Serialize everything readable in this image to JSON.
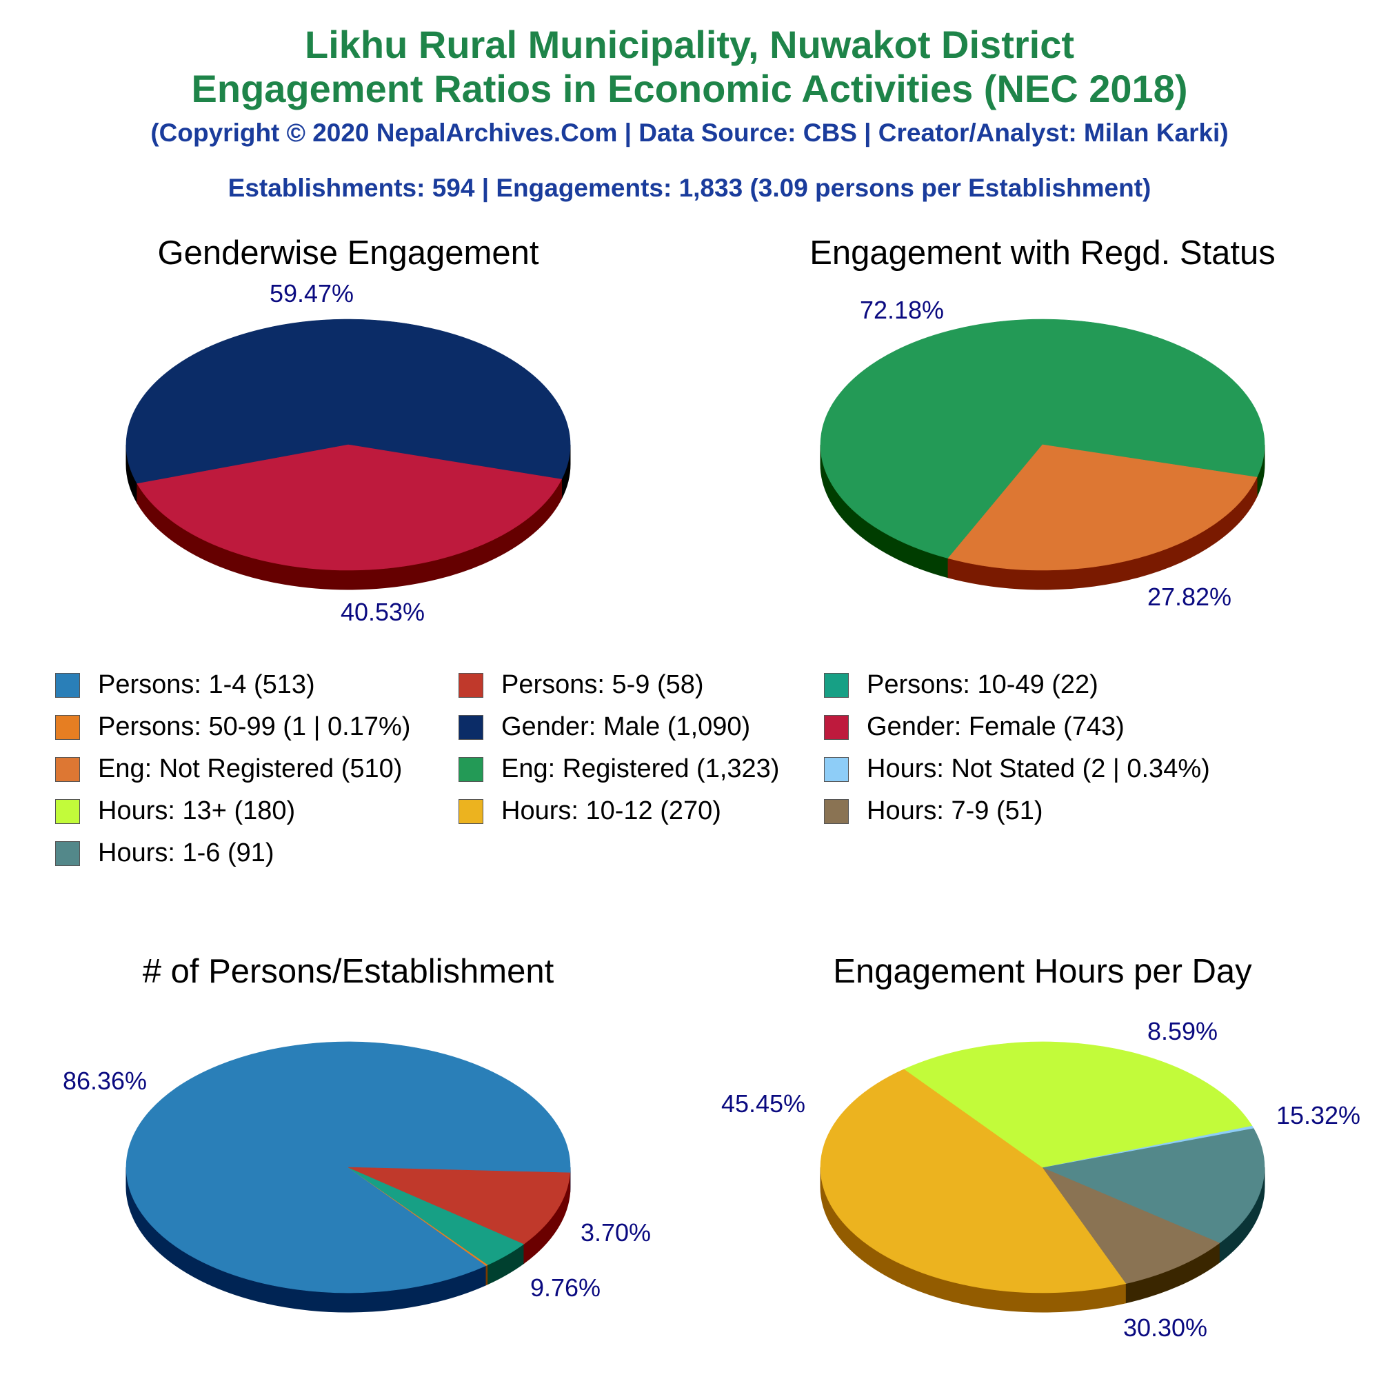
{
  "header": {
    "title_line1": "Likhu Rural Municipality, Nuwakot District",
    "title_line2": "Engagement Ratios in Economic Activities (NEC 2018)",
    "copyright": "(Copyright © 2020 NepalArchives.Com | Data Source: CBS | Creator/Analyst: Milan Karki)",
    "stats": "Establishments: 594 | Engagements: 1,833 (3.09 persons per Establishment)"
  },
  "legend": [
    {
      "label": "Persons: 1-4 (513)",
      "color": "#2a7fb8"
    },
    {
      "label": "Persons: 5-9 (58)",
      "color": "#c0392b"
    },
    {
      "label": "Persons: 10-49 (22)",
      "color": "#17a085"
    },
    {
      "label": "Persons: 50-99 (1 | 0.17%)",
      "color": "#e67e22"
    },
    {
      "label": "Gender: Male (1,090)",
      "color": "#0b2c67"
    },
    {
      "label": "Gender: Female (743)",
      "color": "#be1a3d"
    },
    {
      "label": "Eng: Not Registered (510)",
      "color": "#dd7733"
    },
    {
      "label": "Eng: Registered (1,323)",
      "color": "#239a56"
    },
    {
      "label": "Hours: Not Stated (2 | 0.34%)",
      "color": "#8ecdf7"
    },
    {
      "label": "Hours: 13+ (180)",
      "color": "#c2fb3a"
    },
    {
      "label": "Hours: 10-12 (270)",
      "color": "#ecb31f"
    },
    {
      "label": "Hours: 7-9 (51)",
      "color": "#8a7353"
    },
    {
      "label": "Hours: 1-6 (91)",
      "color": "#53888a"
    }
  ],
  "chart_data": [
    {
      "type": "pie",
      "title": "Genderwise Engagement",
      "slices": [
        {
          "label": "Gender: Male",
          "value": 1090,
          "percent_label": "59.47%",
          "color": "#0b2c67",
          "side": "#000000"
        },
        {
          "label": "Gender: Female",
          "value": 743,
          "percent_label": "40.53%",
          "color": "#be1a3d",
          "side": "#650000"
        }
      ]
    },
    {
      "type": "pie",
      "title": "Engagement with Regd. Status",
      "slices": [
        {
          "label": "Eng: Registered",
          "value": 1323,
          "percent_label": "72.18%",
          "color": "#239a56",
          "side": "#003d00"
        },
        {
          "label": "Eng: Not Registered",
          "value": 510,
          "percent_label": "27.82%",
          "color": "#dd7733",
          "side": "#7a1a00"
        }
      ]
    },
    {
      "type": "pie",
      "title": "# of Persons/Establishment",
      "slices": [
        {
          "label": "Persons: 1-4",
          "value": 513,
          "percent_label": "86.36%",
          "color": "#2a7fb8",
          "side": "#002454"
        },
        {
          "label": "Persons: 50-99",
          "value": 1,
          "percent_label": "",
          "color": "#e67e22",
          "side": "#7a3b00"
        },
        {
          "label": "Persons: 10-49",
          "value": 22,
          "percent_label": "3.70%",
          "color": "#17a085",
          "side": "#00402f"
        },
        {
          "label": "Persons: 5-9",
          "value": 58,
          "percent_label": "9.76%",
          "color": "#c0392b",
          "side": "#6b0000"
        }
      ]
    },
    {
      "type": "pie",
      "title": "Engagement Hours per Day",
      "slices": [
        {
          "label": "Hours: 10-12",
          "value": 270,
          "percent_label": "45.45%",
          "color": "#ecb31f",
          "side": "#935c00"
        },
        {
          "label": "Hours: 7-9",
          "value": 51,
          "percent_label": "8.59%",
          "color": "#8a7353",
          "side": "#3a2600"
        },
        {
          "label": "Hours: 1-6",
          "value": 91,
          "percent_label": "15.32%",
          "color": "#53888a",
          "side": "#0a3436"
        },
        {
          "label": "Hours: Not Stated",
          "value": 2,
          "percent_label": "",
          "color": "#8ecdf7",
          "side": "#3a7aa8"
        },
        {
          "label": "Hours: 13+",
          "value": 180,
          "percent_label": "30.30%",
          "color": "#c2fb3a",
          "side": "#66a300"
        }
      ]
    }
  ]
}
